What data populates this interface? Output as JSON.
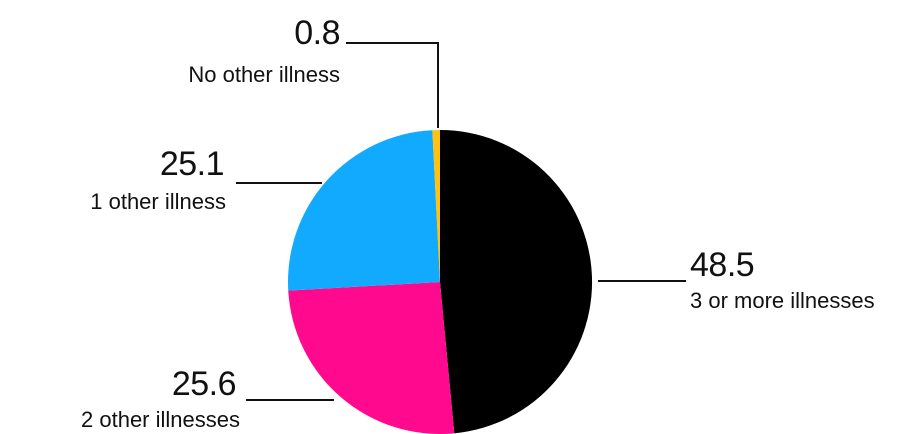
{
  "chart_data": {
    "type": "pie",
    "slices": [
      {
        "label": "3 or more illnesses",
        "value": 48.5,
        "value_text": "48.5",
        "color": "#000000"
      },
      {
        "label": "2 other illnesses",
        "value": 25.6,
        "value_text": "25.6",
        "color": "#ff0a8e"
      },
      {
        "label": "1 other illness",
        "value": 25.1,
        "value_text": "25.1",
        "color": "#12aaff"
      },
      {
        "label": "No other illness",
        "value": 0.8,
        "value_text": "0.8",
        "color": "#ffc20e"
      }
    ],
    "start": "12 o'clock",
    "direction": "clockwise"
  }
}
